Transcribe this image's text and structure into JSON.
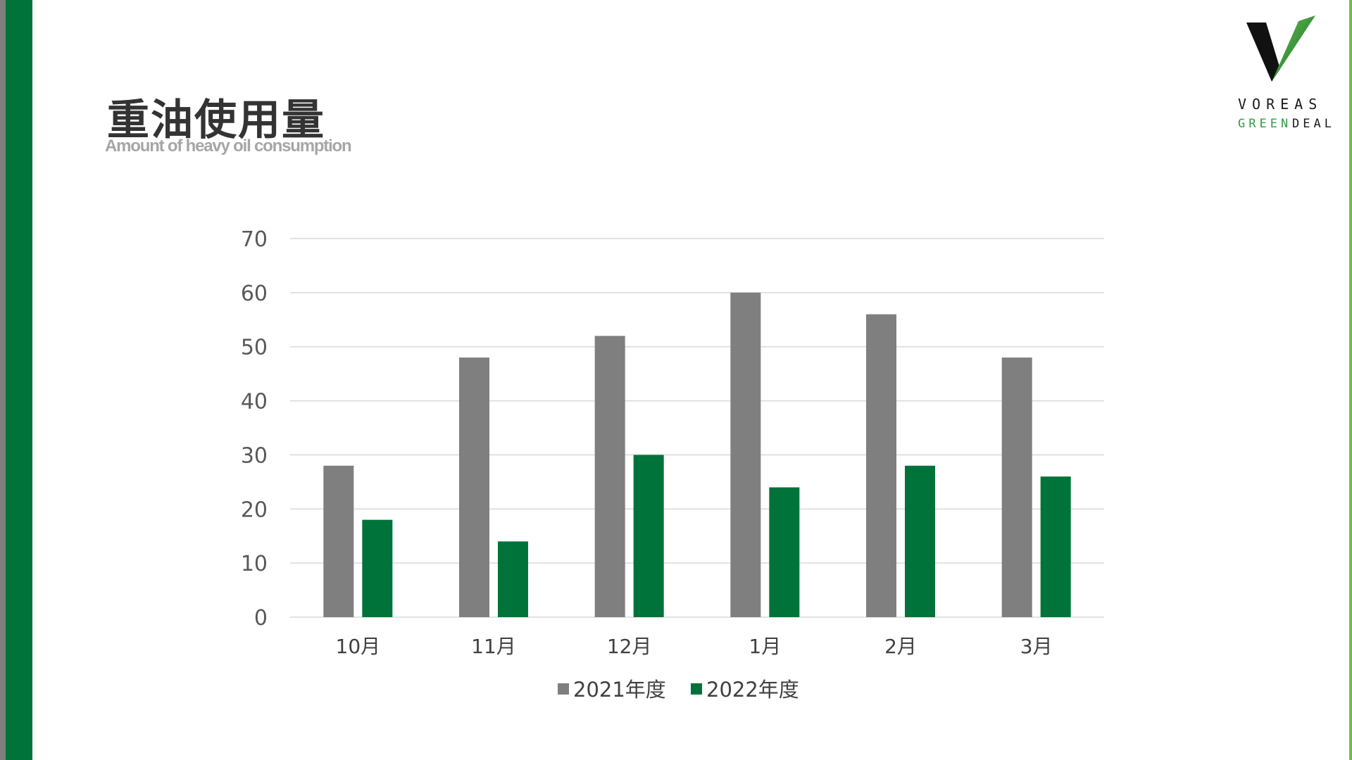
{
  "header": {
    "title": "重油使用量",
    "subtitle": "Amount of heavy oil consumption"
  },
  "logo": {
    "line1": "VOREAS",
    "line2_green": "GREEN",
    "line2_dark": "DEAL",
    "icon": "voreas-v-logo"
  },
  "colors": {
    "brand_green": "#00733a",
    "series_2021": "#7f7f7f",
    "series_2022": "#00733a",
    "accent_light_green": "#6cc04a"
  },
  "chart_data": {
    "type": "bar",
    "categories": [
      "10月",
      "11月",
      "12月",
      "1月",
      "2月",
      "3月"
    ],
    "series": [
      {
        "name": "2021年度",
        "values": [
          28,
          48,
          52,
          60,
          56,
          48
        ]
      },
      {
        "name": "2022年度",
        "values": [
          18,
          14,
          30,
          24,
          28,
          26
        ]
      }
    ],
    "ylim": [
      0,
      70
    ],
    "yticks": [
      0,
      10,
      20,
      30,
      40,
      50,
      60,
      70
    ],
    "grid": true,
    "legend": "bottom"
  }
}
